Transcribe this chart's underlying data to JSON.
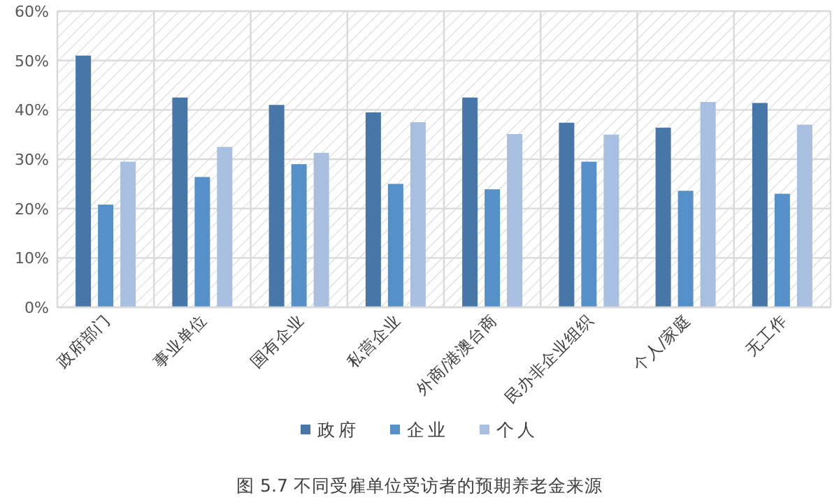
{
  "chart_data": {
    "type": "bar",
    "title": "图 5.7 不同受雇单位受访者的预期养老金来源",
    "categories": [
      "政府部门",
      "事业单位",
      "国有企业",
      "私营企业",
      "外商/港澳台商",
      "民办非企业组织",
      "个人/家庭",
      "无工作"
    ],
    "series": [
      {
        "name": "政府",
        "color": "#4677a8",
        "values": [
          51.0,
          42.5,
          41.0,
          39.5,
          42.5,
          37.4,
          36.4,
          41.4
        ]
      },
      {
        "name": "企业",
        "color": "#5591c8",
        "values": [
          20.8,
          26.4,
          29.0,
          25.0,
          23.9,
          29.5,
          23.6,
          23.0
        ]
      },
      {
        "name": "个人",
        "color": "#a9bfe0",
        "values": [
          29.5,
          32.5,
          31.3,
          37.5,
          35.1,
          35.0,
          41.6,
          37.0
        ]
      }
    ],
    "ylim": [
      0,
      60
    ],
    "yticks": [
      {
        "value": 0,
        "label": "0%"
      },
      {
        "value": 10,
        "label": "10%"
      },
      {
        "value": 20,
        "label": "20%"
      },
      {
        "value": 30,
        "label": "30%"
      },
      {
        "value": 40,
        "label": "40%"
      },
      {
        "value": 50,
        "label": "50%"
      },
      {
        "value": 60,
        "label": "60%"
      }
    ],
    "grid": true,
    "legend": "bottom"
  }
}
